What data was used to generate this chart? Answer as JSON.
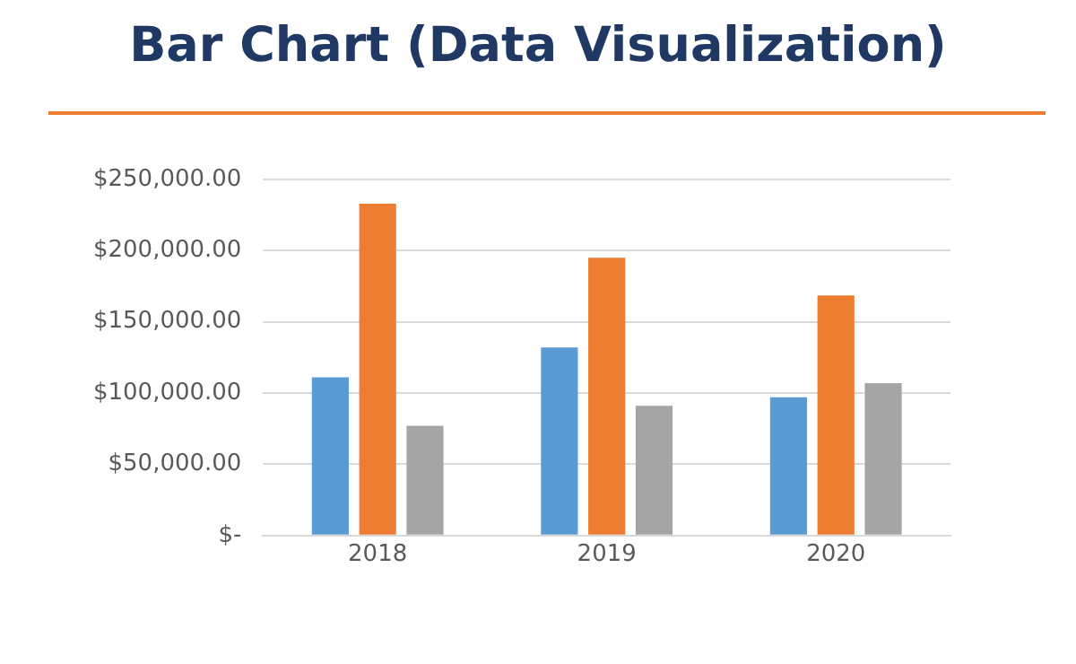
{
  "chart_data": {
    "type": "bar",
    "title": "Bar Chart (Data Visualization)",
    "categories": [
      "2018",
      "2019",
      "2020"
    ],
    "series": [
      {
        "color": "#5b9bd5",
        "values": [
          111000,
          132000,
          97000
        ]
      },
      {
        "color": "#ed7d31",
        "values": [
          233000,
          195000,
          168500
        ]
      },
      {
        "color": "#a5a5a5",
        "values": [
          77000,
          91000,
          107000
        ]
      }
    ],
    "ylim": [
      0,
      250000
    ],
    "yticks": [
      {
        "value": 0,
        "label": "$-"
      },
      {
        "value": 50000,
        "label": "$50,000.00"
      },
      {
        "value": 100000,
        "label": "$100,000.00"
      },
      {
        "value": 150000,
        "label": "$150,000.00"
      },
      {
        "value": 200000,
        "label": "$200,000.00"
      },
      {
        "value": 250000,
        "label": "$250,000.00"
      }
    ],
    "grid": "y",
    "legend": false
  }
}
